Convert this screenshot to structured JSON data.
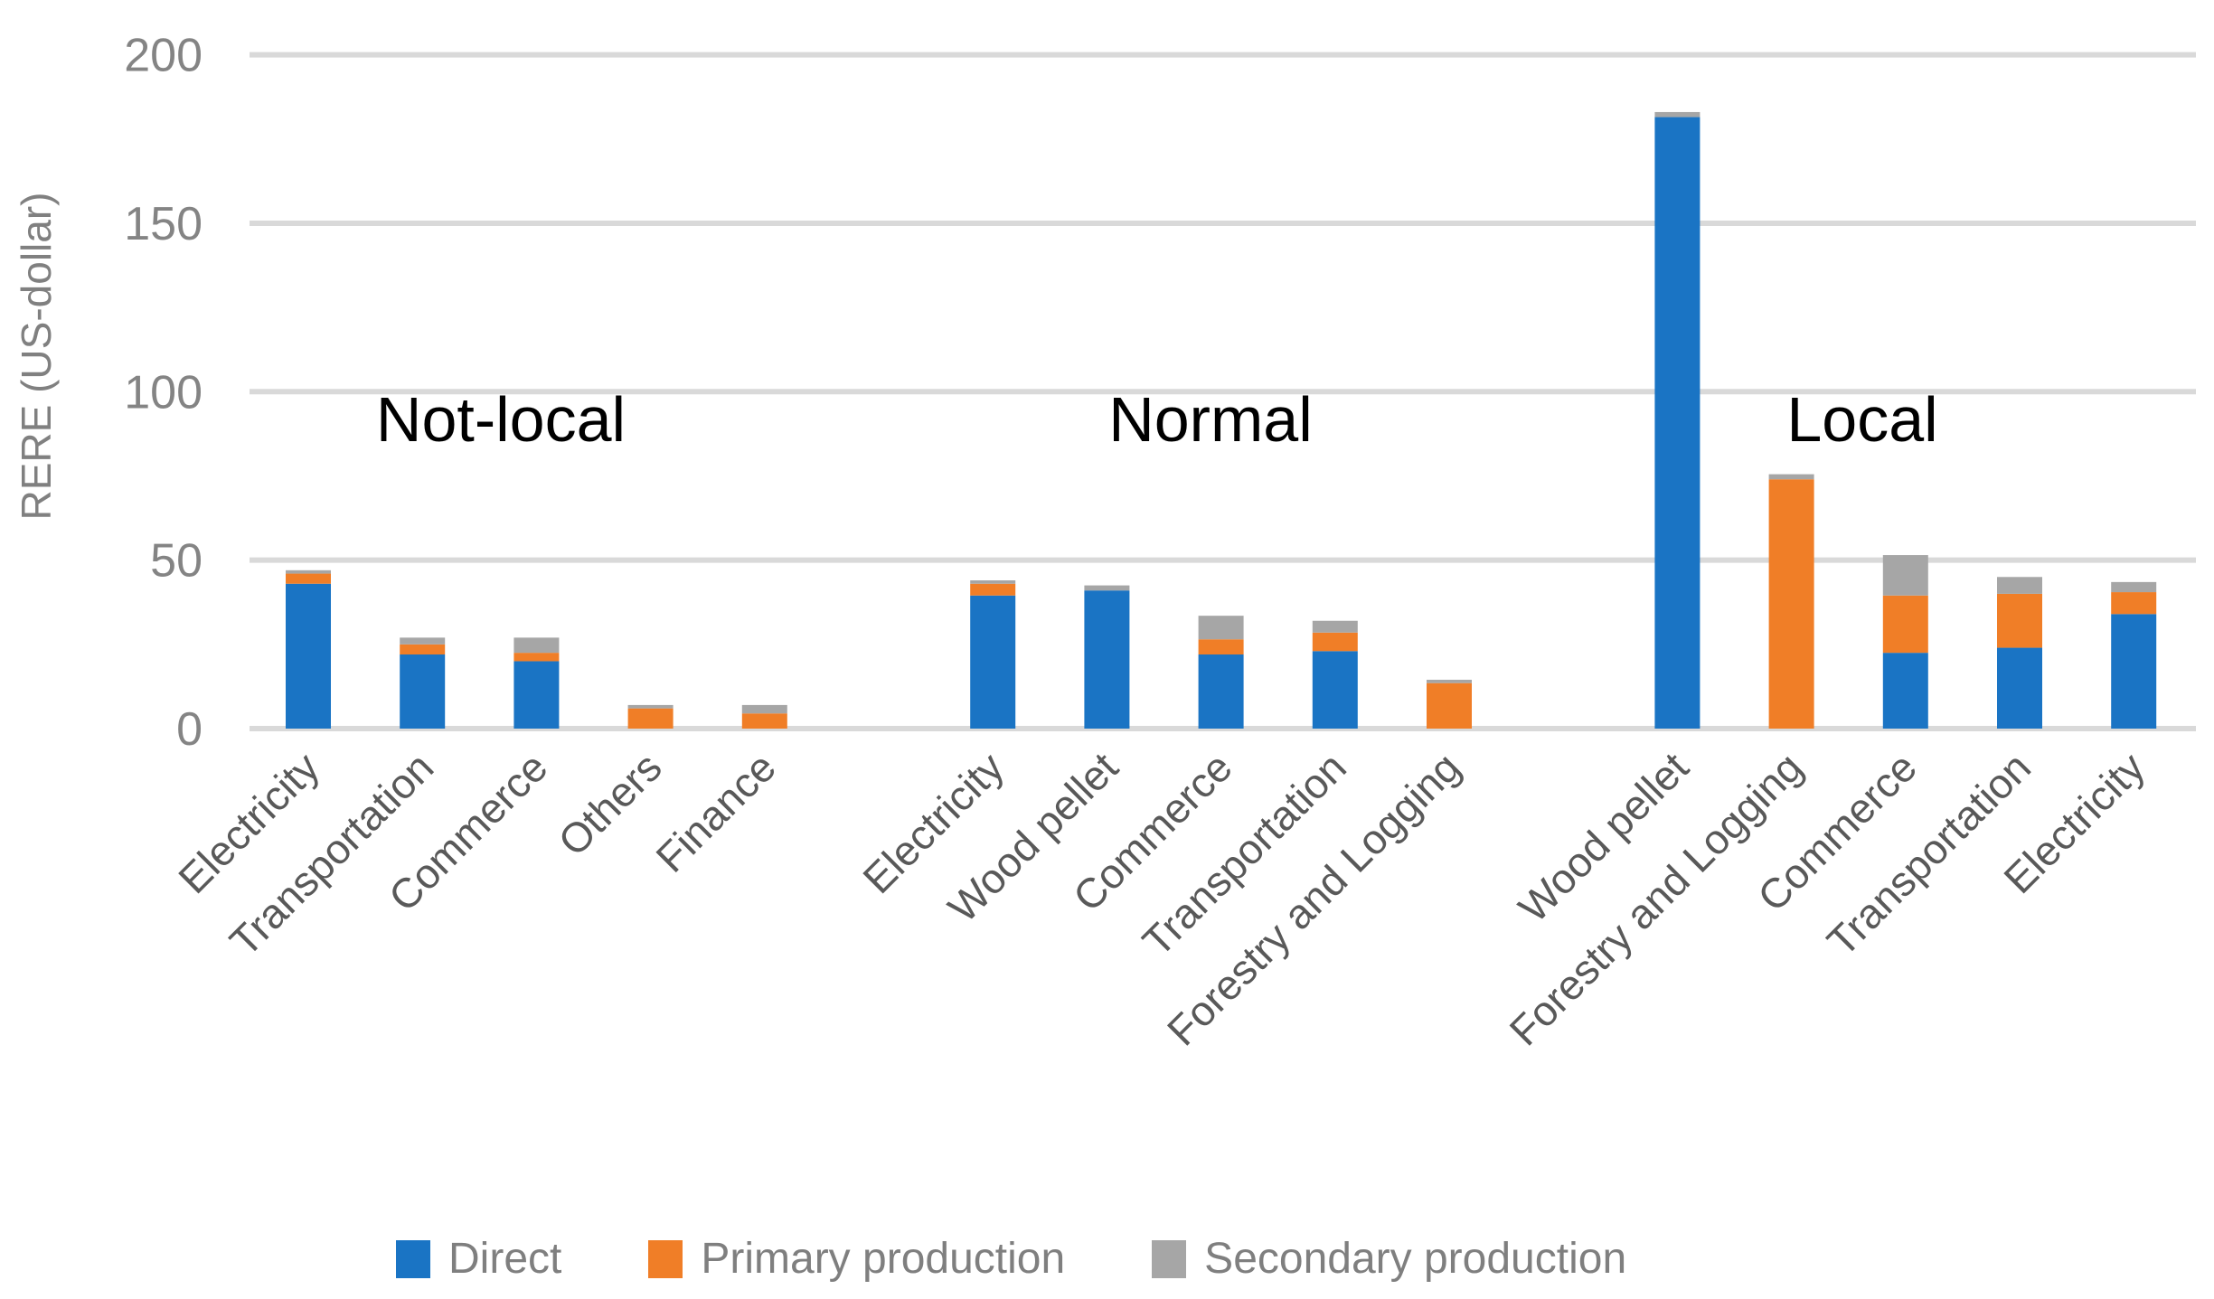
{
  "chart_data": {
    "type": "bar",
    "stacked": true,
    "title": "",
    "ylabel": "RERE (US-dollar)",
    "xlabel": "",
    "ylim": [
      0,
      200
    ],
    "yticks": [
      0,
      50,
      100,
      150,
      200
    ],
    "grid": true,
    "legend_position": "bottom",
    "groups": [
      {
        "label": "Not-local",
        "categories": [
          "Electricity",
          "Transportation",
          "Commerce",
          "Others",
          "Finance"
        ]
      },
      {
        "label": "Normal",
        "categories": [
          "Electricity",
          "Wood pellet",
          "Commerce",
          "Transportation",
          "Forestry and Logging"
        ]
      },
      {
        "label": "Local",
        "categories": [
          "Wood pellet",
          "Forestry and Logging",
          "Commerce",
          "Transportation",
          "Electricity"
        ]
      }
    ],
    "series": [
      {
        "name": "Direct",
        "color": "#1a74c4",
        "values": [
          [
            43,
            22,
            20,
            0,
            0
          ],
          [
            39.5,
            41,
            22,
            23,
            0
          ],
          [
            181.5,
            0,
            22.5,
            24,
            34
          ]
        ]
      },
      {
        "name": "Primary production",
        "color": "#f07e27",
        "values": [
          [
            3,
            3,
            2.5,
            6,
            4.5
          ],
          [
            3.5,
            0,
            4.5,
            5.5,
            13.5
          ],
          [
            0,
            74,
            17,
            16,
            6.5
          ]
        ]
      },
      {
        "name": "Secondary production",
        "color": "#a6a6a6",
        "values": [
          [
            1,
            2,
            4.5,
            1,
            2.5
          ],
          [
            1,
            1.5,
            7,
            3.5,
            1
          ],
          [
            1.5,
            1.5,
            12,
            5,
            3
          ]
        ]
      }
    ],
    "colors": {
      "gridline": "#d9d9d9",
      "tick_label": "#848484",
      "category_label": "#595959",
      "group_label": "#000000",
      "axis_title": "#808080",
      "legend_text": "#7f7f7f"
    }
  }
}
